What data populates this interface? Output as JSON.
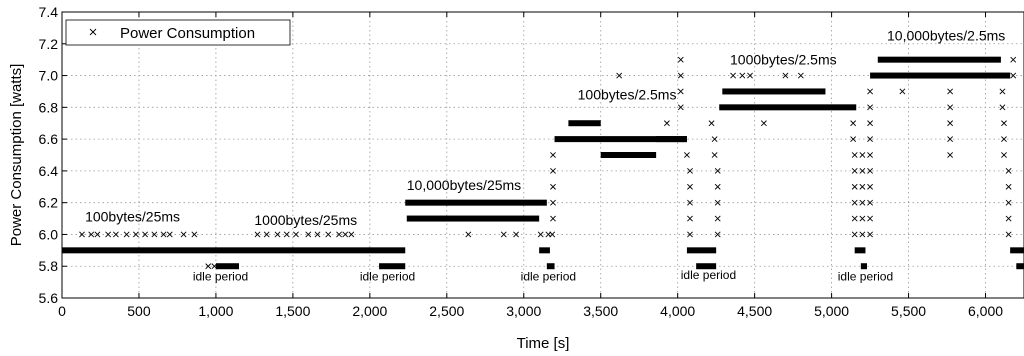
{
  "chart_data": {
    "type": "scatter",
    "xlabel": "Time [s]",
    "ylabel": "Power  Consumption [watts]",
    "xlim": [
      0,
      6250
    ],
    "ylim": [
      5.6,
      7.4
    ],
    "x_ticks": [
      0,
      500,
      1000,
      1500,
      2000,
      2500,
      3000,
      3500,
      4000,
      4500,
      5000,
      5500,
      6000
    ],
    "x_tick_labels": [
      "0",
      "500",
      "1,000",
      "1,500",
      "2,000",
      "2,500",
      "3,000",
      "3,500",
      "4,000",
      "4,500",
      "5,000",
      "5,500",
      "6,000"
    ],
    "y_ticks": [
      5.6,
      5.8,
      6.0,
      6.2,
      6.4,
      6.6,
      6.8,
      7.0,
      7.2,
      7.4
    ],
    "y_tick_labels": [
      "5.6",
      "5.8",
      "6.0",
      "6.2",
      "6.4",
      "6.6",
      "6.8",
      "7.0",
      "7.2",
      "7.4"
    ],
    "grid": true,
    "legend": {
      "position": "top-left",
      "label": "Power Consumption"
    },
    "series": [
      {
        "name": "Power Consumption",
        "marker": "x",
        "color": "#000000",
        "dense_segments": [
          {
            "x": [
              0,
              2230
            ],
            "y": 5.9
          },
          {
            "x": [
              1000,
              1150
            ],
            "y": 5.8
          },
          {
            "x": [
              2060,
              2230
            ],
            "y": 5.8
          },
          {
            "x": [
              2230,
              3150
            ],
            "y": 6.2
          },
          {
            "x": [
              2240,
              3100
            ],
            "y": 6.1
          },
          {
            "x": [
              3100,
              3170
            ],
            "y": 5.9
          },
          {
            "x": [
              3150,
              3200
            ],
            "y": 5.8
          },
          {
            "x": [
              3200,
              4060
            ],
            "y": 6.6
          },
          {
            "x": [
              3290,
              3500
            ],
            "y": 6.7
          },
          {
            "x": [
              3500,
              3860
            ],
            "y": 6.5
          },
          {
            "x": [
              3860,
              4060
            ],
            "y": 6.6
          },
          {
            "x": [
              4060,
              4250
            ],
            "y": 5.9
          },
          {
            "x": [
              4120,
              4250
            ],
            "y": 5.8
          },
          {
            "x": [
              4270,
              5160
            ],
            "y": 6.8
          },
          {
            "x": [
              4290,
              4960
            ],
            "y": 6.9
          },
          {
            "x": [
              5150,
              5220
            ],
            "y": 5.9
          },
          {
            "x": [
              5190,
              5230
            ],
            "y": 5.8
          },
          {
            "x": [
              5250,
              6160
            ],
            "y": 7.0
          },
          {
            "x": [
              5300,
              6100
            ],
            "y": 7.1
          },
          {
            "x": [
              6160,
              6250
            ],
            "y": 5.9
          },
          {
            "x": [
              6200,
              6250
            ],
            "y": 5.8
          }
        ],
        "scattered_points": [
          [
            130,
            6.0
          ],
          [
            190,
            6.0
          ],
          [
            230,
            6.0
          ],
          [
            300,
            6.0
          ],
          [
            350,
            6.0
          ],
          [
            420,
            6.0
          ],
          [
            480,
            6.0
          ],
          [
            540,
            6.0
          ],
          [
            600,
            6.0
          ],
          [
            660,
            6.0
          ],
          [
            700,
            6.0
          ],
          [
            790,
            6.0
          ],
          [
            860,
            6.0
          ],
          [
            950,
            5.8
          ],
          [
            990,
            5.8
          ],
          [
            1270,
            6.0
          ],
          [
            1330,
            6.0
          ],
          [
            1400,
            6.0
          ],
          [
            1460,
            6.0
          ],
          [
            1520,
            6.0
          ],
          [
            1600,
            6.0
          ],
          [
            1660,
            6.0
          ],
          [
            1730,
            6.0
          ],
          [
            1800,
            6.0
          ],
          [
            1840,
            6.0
          ],
          [
            1880,
            6.0
          ],
          [
            2640,
            6.0
          ],
          [
            2870,
            6.0
          ],
          [
            2950,
            6.0
          ],
          [
            3110,
            6.0
          ],
          [
            3160,
            6.0
          ],
          [
            3185,
            6.0
          ],
          [
            3190,
            6.1
          ],
          [
            3190,
            6.2
          ],
          [
            3190,
            6.3
          ],
          [
            3190,
            6.4
          ],
          [
            3190,
            6.5
          ],
          [
            3620,
            7.0
          ],
          [
            3930,
            6.7
          ],
          [
            4020,
            7.1
          ],
          [
            4020,
            7.0
          ],
          [
            4020,
            6.9
          ],
          [
            4020,
            6.8
          ],
          [
            4060,
            6.5
          ],
          [
            4080,
            6.4
          ],
          [
            4080,
            6.3
          ],
          [
            4080,
            6.2
          ],
          [
            4080,
            6.1
          ],
          [
            4080,
            6.0
          ],
          [
            4220,
            6.7
          ],
          [
            4240,
            6.6
          ],
          [
            4240,
            6.5
          ],
          [
            4260,
            6.4
          ],
          [
            4260,
            6.3
          ],
          [
            4260,
            6.2
          ],
          [
            4260,
            6.1
          ],
          [
            4260,
            6.0
          ],
          [
            4360,
            7.0
          ],
          [
            4420,
            7.0
          ],
          [
            4470,
            7.0
          ],
          [
            4560,
            6.7
          ],
          [
            4700,
            7.0
          ],
          [
            4800,
            7.0
          ],
          [
            5130,
            6.8
          ],
          [
            5140,
            6.7
          ],
          [
            5140,
            6.6
          ],
          [
            5150,
            6.5
          ],
          [
            5150,
            6.4
          ],
          [
            5150,
            6.3
          ],
          [
            5150,
            6.2
          ],
          [
            5150,
            6.1
          ],
          [
            5150,
            6.0
          ],
          [
            5200,
            6.5
          ],
          [
            5200,
            6.4
          ],
          [
            5200,
            6.3
          ],
          [
            5200,
            6.2
          ],
          [
            5200,
            6.1
          ],
          [
            5200,
            6.0
          ],
          [
            5250,
            6.9
          ],
          [
            5250,
            6.8
          ],
          [
            5250,
            6.7
          ],
          [
            5250,
            6.6
          ],
          [
            5250,
            6.5
          ],
          [
            5250,
            6.4
          ],
          [
            5250,
            6.3
          ],
          [
            5250,
            6.2
          ],
          [
            5250,
            6.1
          ],
          [
            5250,
            6.0
          ],
          [
            5460,
            6.9
          ],
          [
            5770,
            6.9
          ],
          [
            5770,
            6.8
          ],
          [
            5770,
            6.7
          ],
          [
            5770,
            6.6
          ],
          [
            5770,
            6.5
          ],
          [
            6110,
            6.9
          ],
          [
            6110,
            6.8
          ],
          [
            6120,
            6.7
          ],
          [
            6120,
            6.6
          ],
          [
            6120,
            6.5
          ],
          [
            6150,
            6.4
          ],
          [
            6150,
            6.3
          ],
          [
            6150,
            6.2
          ],
          [
            6150,
            6.1
          ],
          [
            6150,
            6.0
          ],
          [
            6180,
            7.1
          ],
          [
            6180,
            7.0
          ]
        ]
      }
    ],
    "annotations": [
      {
        "text": "100bytes/25ms",
        "x": 150,
        "y": 6.08
      },
      {
        "text": "1000bytes/25ms",
        "x": 1250,
        "y": 6.06
      },
      {
        "text": "10,000bytes/25ms",
        "x": 2240,
        "y": 6.28
      },
      {
        "text": "100bytes/2.5ms",
        "x": 3350,
        "y": 6.85
      },
      {
        "text": "1000bytes/2.5ms",
        "x": 4340,
        "y": 7.07
      },
      {
        "text": "10,000bytes/2.5ms",
        "x": 5360,
        "y": 7.22
      }
    ],
    "idle_labels": [
      {
        "text": "idle period",
        "x": 850,
        "y": 5.71
      },
      {
        "text": "idle period",
        "x": 1935,
        "y": 5.71
      },
      {
        "text": "idle period",
        "x": 2980,
        "y": 5.71
      },
      {
        "text": "idle period",
        "x": 4020,
        "y": 5.72
      },
      {
        "text": "idle period",
        "x": 5040,
        "y": 5.71
      }
    ]
  }
}
